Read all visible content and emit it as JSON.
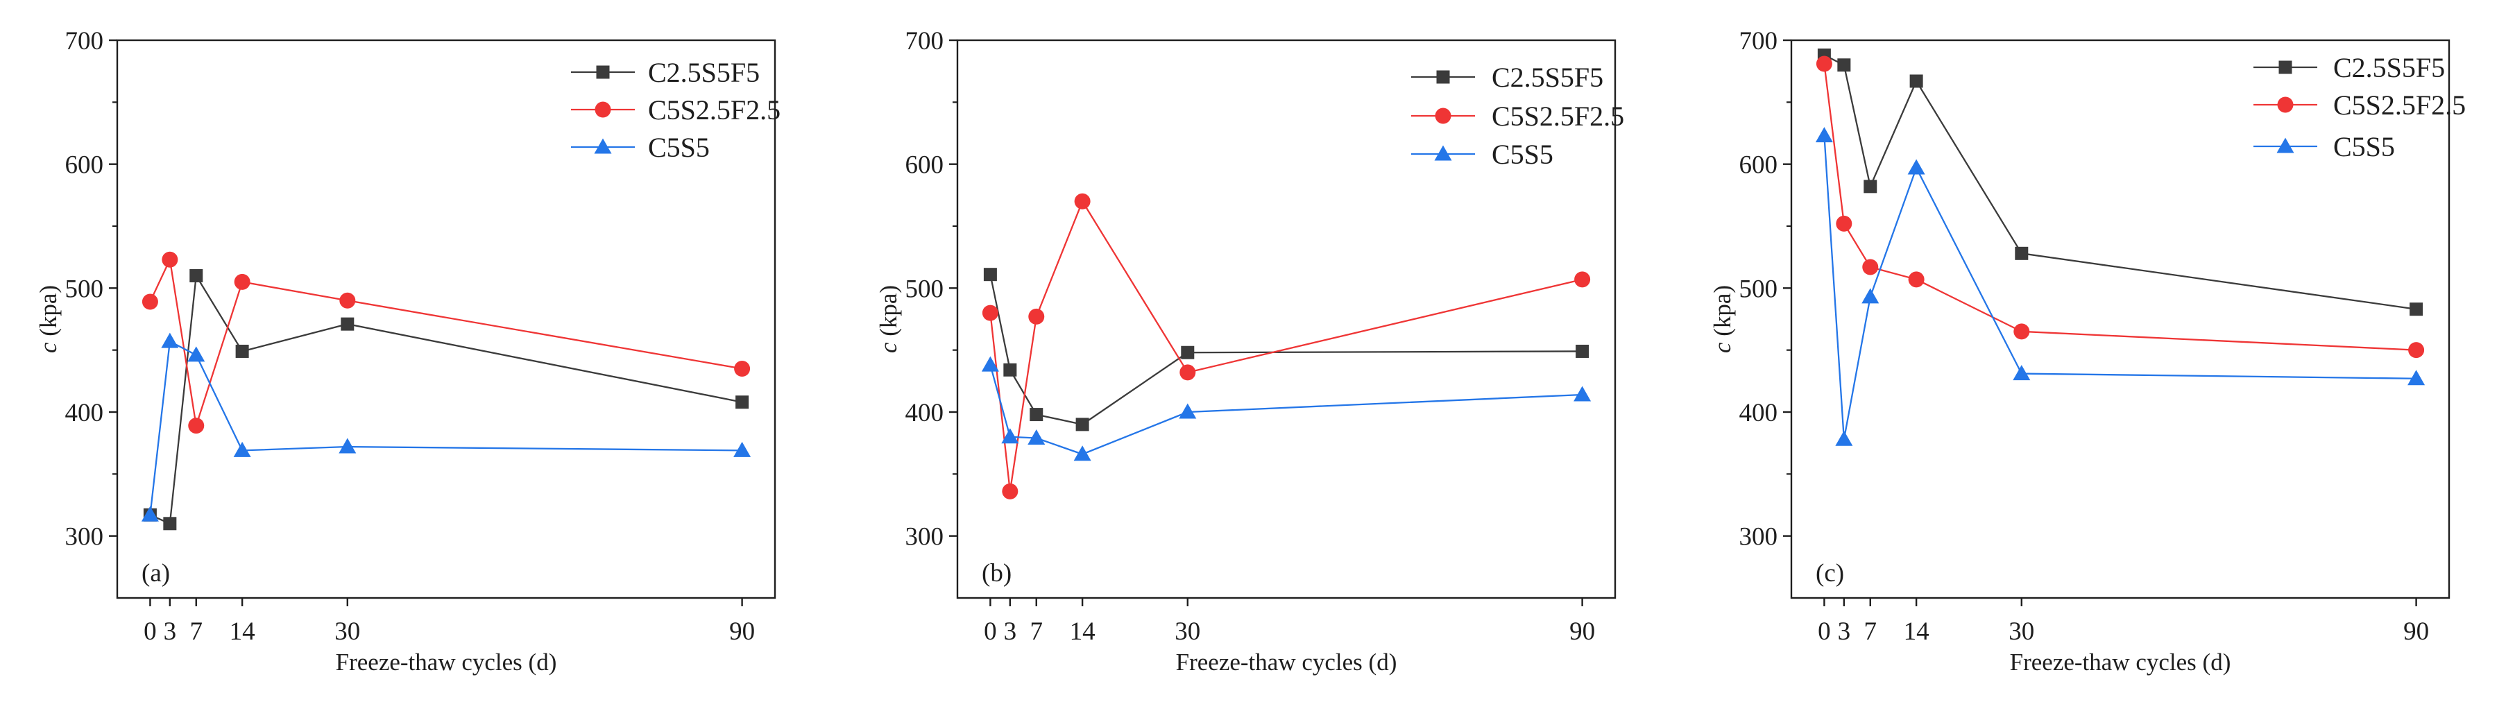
{
  "chart_data": [
    {
      "type": "line",
      "panel_label": "(a)",
      "xlabel": "Freeze-thaw cycles (d)",
      "ylabel": {
        "var": "c",
        "unit": "(kpa)"
      },
      "x": [
        0,
        3,
        7,
        14,
        30,
        90
      ],
      "x_ticks": [
        0,
        3,
        7,
        14,
        30,
        90
      ],
      "xlim": [
        -5,
        95
      ],
      "y_ticks": [
        300,
        400,
        500,
        600,
        700
      ],
      "ylim": [
        250,
        700
      ],
      "grid": false,
      "legend_position": "top-right",
      "series": [
        {
          "name": "C2.5S5F5",
          "marker": "square",
          "color": "#3b3b3b",
          "values": [
            317,
            310,
            510,
            449,
            471,
            408
          ]
        },
        {
          "name": "C5S2.5F2.5",
          "marker": "circle",
          "color": "#ef3535",
          "values": [
            489,
            523,
            389,
            505,
            490,
            435
          ]
        },
        {
          "name": "C5S5",
          "marker": "triangle",
          "color": "#2476e8",
          "values": [
            317,
            457,
            446,
            369,
            372,
            369
          ]
        }
      ]
    },
    {
      "type": "line",
      "panel_label": "(b)",
      "xlabel": "Freeze-thaw cycles (d)",
      "ylabel": {
        "var": "c",
        "unit": "(kpa)"
      },
      "x": [
        0,
        3,
        7,
        14,
        30,
        90
      ],
      "x_ticks": [
        0,
        3,
        7,
        14,
        30,
        90
      ],
      "xlim": [
        -5,
        95
      ],
      "y_ticks": [
        300,
        400,
        500,
        600,
        700
      ],
      "ylim": [
        250,
        700
      ],
      "grid": false,
      "legend_position": "top-right",
      "series": [
        {
          "name": "C2.5S5F5",
          "marker": "square",
          "color": "#3b3b3b",
          "values": [
            511,
            434,
            398,
            390,
            448,
            449
          ]
        },
        {
          "name": "C5S2.5F2.5",
          "marker": "circle",
          "color": "#ef3535",
          "values": [
            480,
            336,
            477,
            570,
            432,
            507
          ]
        },
        {
          "name": "C5S5",
          "marker": "triangle",
          "color": "#2476e8",
          "values": [
            438,
            380,
            379,
            366,
            400,
            414
          ]
        }
      ]
    },
    {
      "type": "line",
      "panel_label": "(c)",
      "xlabel": "Freeze-thaw cycles (d)",
      "ylabel": {
        "var": "c",
        "unit": "(kpa)"
      },
      "x": [
        0,
        3,
        7,
        14,
        30,
        90
      ],
      "x_ticks": [
        0,
        3,
        7,
        14,
        30,
        90
      ],
      "xlim": [
        -5,
        95
      ],
      "y_ticks": [
        300,
        400,
        500,
        600,
        700
      ],
      "ylim": [
        250,
        700
      ],
      "grid": false,
      "legend_position": "top-right",
      "series": [
        {
          "name": "C2.5S5F5",
          "marker": "square",
          "color": "#3b3b3b",
          "values": [
            688,
            680,
            582,
            667,
            528,
            483
          ]
        },
        {
          "name": "C5S2.5F2.5",
          "marker": "circle",
          "color": "#ef3535",
          "values": [
            681,
            552,
            517,
            507,
            465,
            450
          ]
        },
        {
          "name": "C5S5",
          "marker": "triangle",
          "color": "#2476e8",
          "values": [
            623,
            378,
            493,
            597,
            431,
            427
          ]
        }
      ]
    }
  ]
}
